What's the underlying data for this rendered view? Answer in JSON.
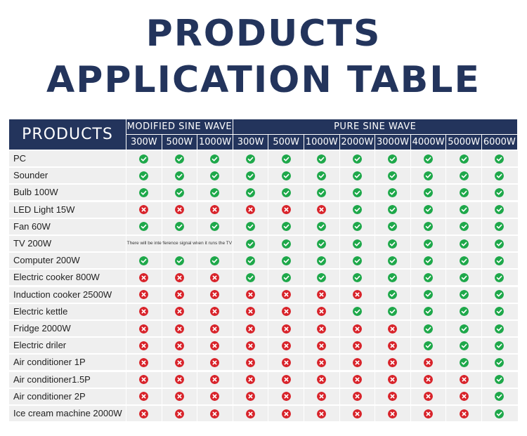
{
  "title": {
    "line1": "PRODUCTS",
    "line2": "APPLICATION TABLE"
  },
  "colors": {
    "header_bg": "#23345c",
    "row_bg": "#efefef",
    "yes": "#1ea84a",
    "no": "#d8232a"
  },
  "icons": {
    "yes": "check-circle-icon",
    "no": "x-circle-icon"
  },
  "header": {
    "products": "PRODUCTS",
    "groups": [
      {
        "label": "MODIFIED SINE WAVE",
        "span": 3
      },
      {
        "label": "PURE SINE WAVE",
        "span": 8
      }
    ],
    "wattages": [
      "300W",
      "500W",
      "1000W",
      "300W",
      "500W",
      "1000W",
      "2000W",
      "3000W",
      "4000W",
      "5000W",
      "6000W"
    ]
  },
  "rows": [
    {
      "label": "PC",
      "cells": [
        1,
        1,
        1,
        1,
        1,
        1,
        1,
        1,
        1,
        1,
        1
      ]
    },
    {
      "label": "Sounder",
      "cells": [
        1,
        1,
        1,
        1,
        1,
        1,
        1,
        1,
        1,
        1,
        1
      ]
    },
    {
      "label": "Bulb 100W",
      "cells": [
        1,
        1,
        1,
        1,
        1,
        1,
        1,
        1,
        1,
        1,
        1
      ]
    },
    {
      "label": "LED Light 15W",
      "cells": [
        0,
        0,
        0,
        0,
        0,
        0,
        1,
        1,
        1,
        1,
        1
      ]
    },
    {
      "label": "Fan 60W",
      "cells": [
        1,
        1,
        1,
        1,
        1,
        1,
        1,
        1,
        1,
        1,
        1
      ]
    },
    {
      "label": "TV 200W",
      "note": "There will be interference signal when it runs the TV",
      "cells": [
        null,
        null,
        null,
        1,
        1,
        1,
        1,
        1,
        1,
        1,
        1
      ]
    },
    {
      "label": "Computer 200W",
      "cells": [
        1,
        1,
        1,
        1,
        1,
        1,
        1,
        1,
        1,
        1,
        1
      ]
    },
    {
      "label": "Electric cooker 800W",
      "cells": [
        0,
        0,
        0,
        1,
        1,
        1,
        1,
        1,
        1,
        1,
        1
      ]
    },
    {
      "label": "Induction cooker 2500W",
      "cells": [
        0,
        0,
        0,
        0,
        0,
        0,
        0,
        1,
        1,
        1,
        1
      ]
    },
    {
      "label": "Electric kettle",
      "cells": [
        0,
        0,
        0,
        0,
        0,
        0,
        1,
        1,
        1,
        1,
        1
      ]
    },
    {
      "label": "Fridge 2000W",
      "cells": [
        0,
        0,
        0,
        0,
        0,
        0,
        0,
        0,
        1,
        1,
        1
      ]
    },
    {
      "label": "Electric driler",
      "cells": [
        0,
        0,
        0,
        0,
        0,
        0,
        0,
        0,
        1,
        1,
        1
      ]
    },
    {
      "label": "Air conditioner 1P",
      "cells": [
        0,
        0,
        0,
        0,
        0,
        0,
        0,
        0,
        0,
        1,
        1
      ]
    },
    {
      "label": "Air conditioner1.5P",
      "cells": [
        0,
        0,
        0,
        0,
        0,
        0,
        0,
        0,
        0,
        0,
        1
      ]
    },
    {
      "label": "Air conditioner 2P",
      "cells": [
        0,
        0,
        0,
        0,
        0,
        0,
        0,
        0,
        0,
        0,
        1
      ]
    },
    {
      "label": "Ice cream machine 2000W",
      "cells": [
        0,
        0,
        0,
        0,
        0,
        0,
        0,
        0,
        0,
        0,
        1
      ]
    }
  ]
}
